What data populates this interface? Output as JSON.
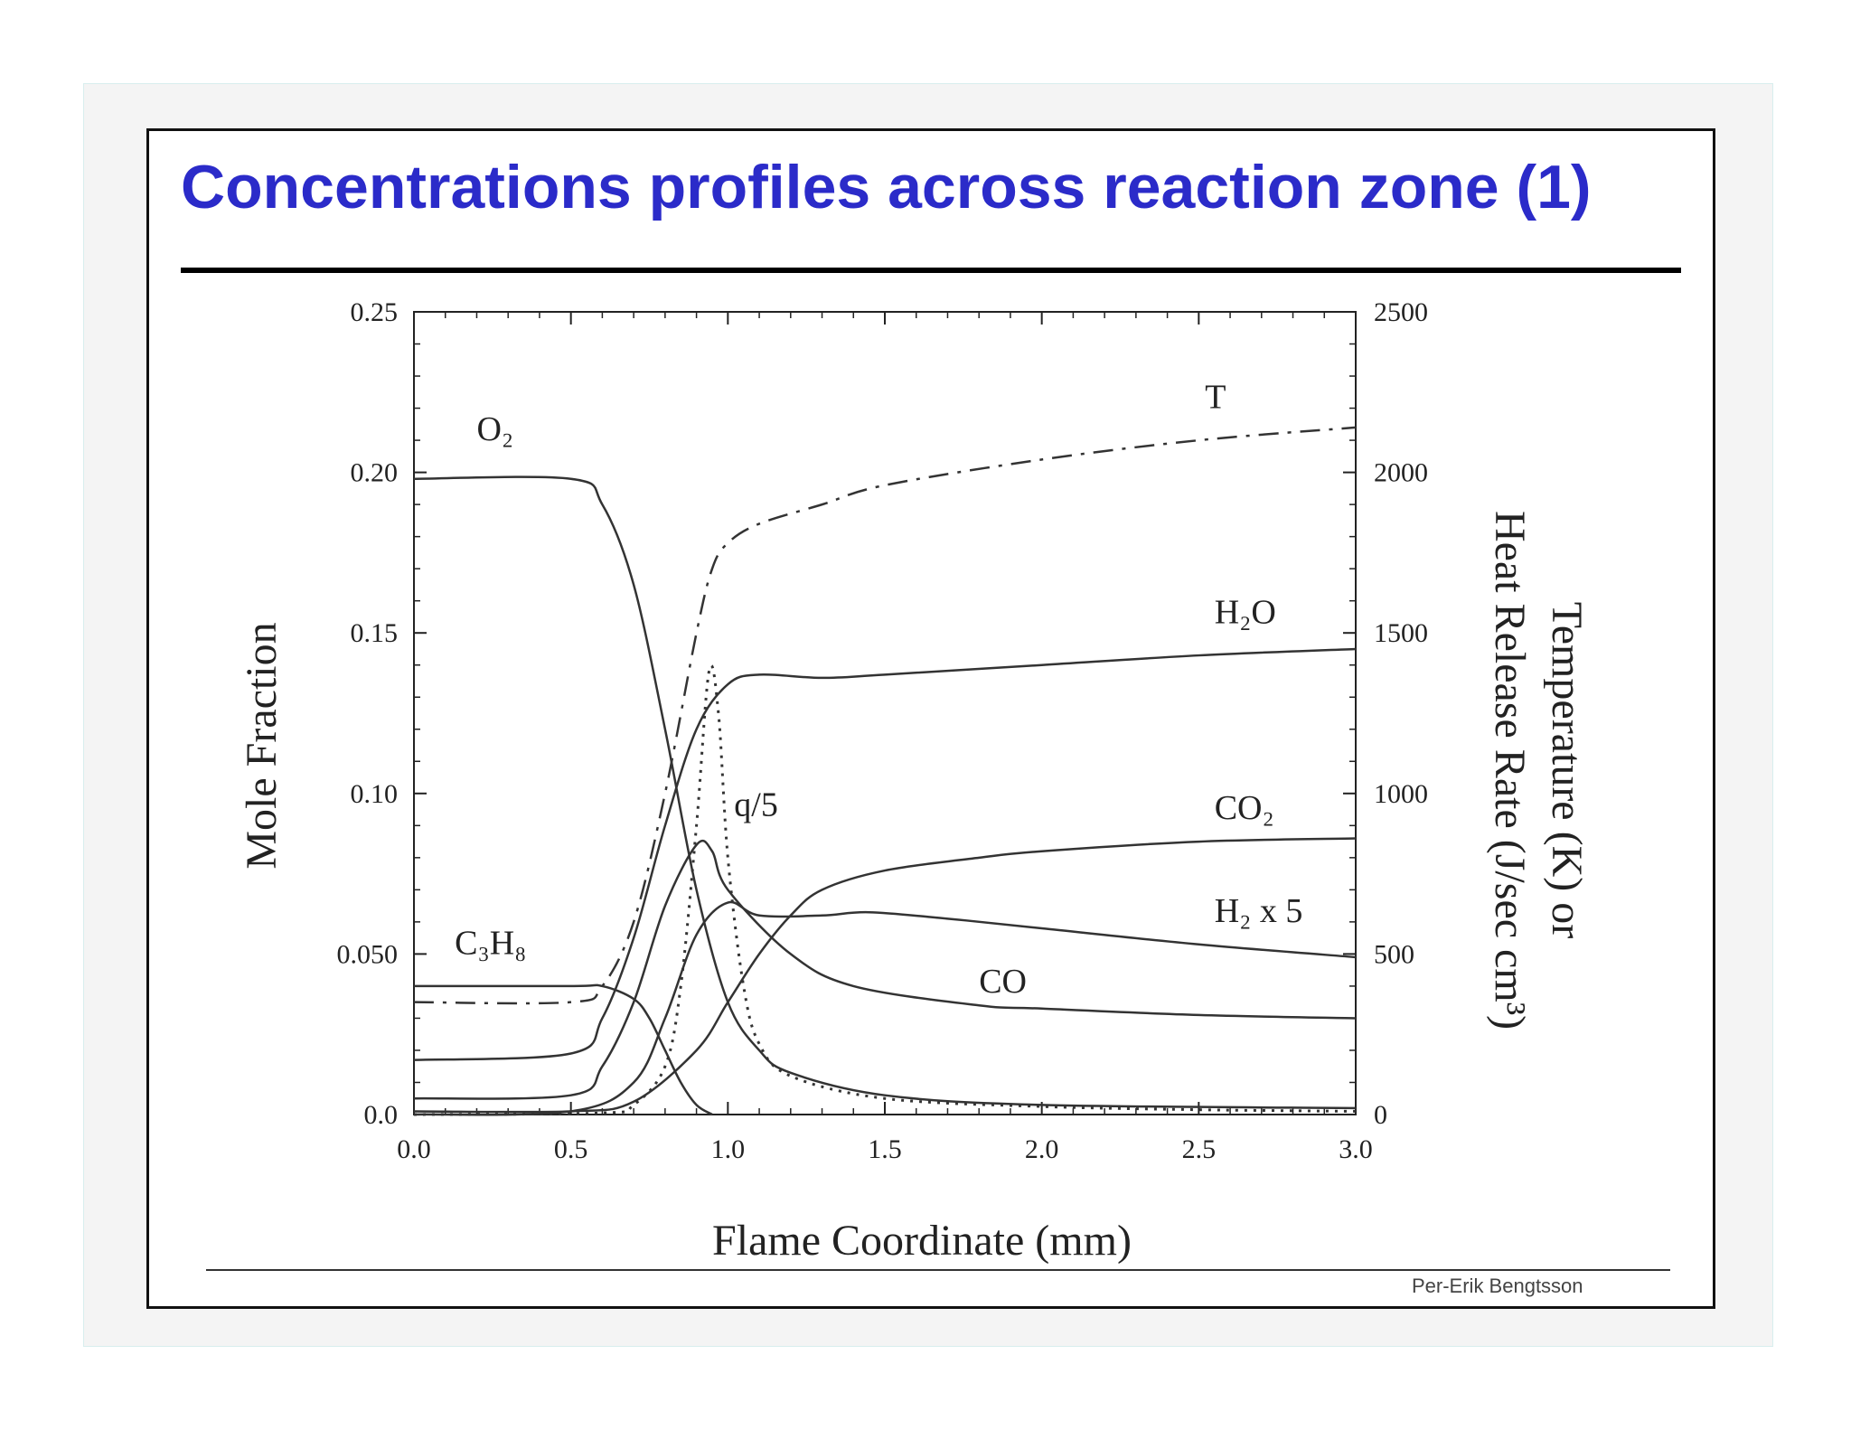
{
  "slide": {
    "title": "Concentrations profiles across reaction zone (1)",
    "credit": "Per-Erik Bengtsson"
  },
  "chart_data": {
    "type": "line",
    "title": "",
    "xlabel": "Flame Coordinate (mm)",
    "ylabel": "Mole Fraction",
    "y2label_line1": "Temperature (K) or",
    "y2label_line2": "Heat Release Rate (J/sec cm³)",
    "xlim": [
      0,
      3.0
    ],
    "ylim": [
      0,
      0.25
    ],
    "y2lim": [
      0,
      2500
    ],
    "x_ticks": [
      "0.0",
      "0.5",
      "1.0",
      "1.5",
      "2.0",
      "2.5",
      "3.0"
    ],
    "y_ticks": [
      "0.0",
      "0.050",
      "0.10",
      "0.15",
      "0.20",
      "0.25"
    ],
    "y2_ticks": [
      "0",
      "500",
      "1000",
      "1500",
      "2000",
      "2500"
    ],
    "grid": false,
    "colors": {
      "line": "#333333",
      "title": "#2b2bc9"
    },
    "series": [
      {
        "name": "O₂",
        "axis": "left",
        "style": "solid",
        "points": [
          [
            0,
            0.198
          ],
          [
            0.5,
            0.198
          ],
          [
            0.6,
            0.19
          ],
          [
            0.7,
            0.165
          ],
          [
            0.8,
            0.12
          ],
          [
            0.9,
            0.07
          ],
          [
            1.0,
            0.035
          ],
          [
            1.1,
            0.02
          ],
          [
            1.2,
            0.013
          ],
          [
            1.5,
            0.006
          ],
          [
            2.0,
            0.003
          ],
          [
            3.0,
            0.002
          ]
        ],
        "label_at": [
          0.2,
          0.21
        ]
      },
      {
        "name": "H₂O",
        "axis": "left",
        "style": "solid",
        "points": [
          [
            0,
            0.017
          ],
          [
            0.5,
            0.019
          ],
          [
            0.6,
            0.03
          ],
          [
            0.7,
            0.055
          ],
          [
            0.8,
            0.09
          ],
          [
            0.9,
            0.12
          ],
          [
            1.0,
            0.134
          ],
          [
            1.1,
            0.137
          ],
          [
            1.3,
            0.136
          ],
          [
            1.5,
            0.137
          ],
          [
            2.0,
            0.14
          ],
          [
            2.5,
            0.143
          ],
          [
            3.0,
            0.145
          ]
        ],
        "label_at": [
          2.55,
          0.153
        ]
      },
      {
        "name": "CO₂",
        "axis": "left",
        "style": "solid",
        "points": [
          [
            0,
            0.001
          ],
          [
            0.5,
            0.001
          ],
          [
            0.7,
            0.004
          ],
          [
            0.9,
            0.02
          ],
          [
            1.0,
            0.035
          ],
          [
            1.1,
            0.05
          ],
          [
            1.2,
            0.062
          ],
          [
            1.3,
            0.07
          ],
          [
            1.5,
            0.076
          ],
          [
            1.8,
            0.08
          ],
          [
            2.0,
            0.082
          ],
          [
            2.5,
            0.085
          ],
          [
            3.0,
            0.086
          ]
        ],
        "label_at": [
          2.55,
          0.092
        ]
      },
      {
        "name": "H₂ x 5",
        "axis": "left",
        "style": "solid",
        "points": [
          [
            0,
            0.0
          ],
          [
            0.5,
            0.001
          ],
          [
            0.7,
            0.01
          ],
          [
            0.8,
            0.03
          ],
          [
            0.9,
            0.056
          ],
          [
            1.0,
            0.066
          ],
          [
            1.1,
            0.062
          ],
          [
            1.3,
            0.062
          ],
          [
            1.45,
            0.063
          ],
          [
            1.7,
            0.061
          ],
          [
            2.0,
            0.058
          ],
          [
            2.5,
            0.053
          ],
          [
            3.0,
            0.049
          ]
        ],
        "label_at": [
          2.55,
          0.06
        ]
      },
      {
        "name": "CO",
        "axis": "left",
        "style": "solid",
        "points": [
          [
            0,
            0.005
          ],
          [
            0.5,
            0.006
          ],
          [
            0.6,
            0.015
          ],
          [
            0.7,
            0.035
          ],
          [
            0.8,
            0.065
          ],
          [
            0.9,
            0.084
          ],
          [
            0.95,
            0.082
          ],
          [
            1.0,
            0.07
          ],
          [
            1.2,
            0.05
          ],
          [
            1.4,
            0.04
          ],
          [
            1.8,
            0.034
          ],
          [
            2.0,
            0.033
          ],
          [
            2.5,
            0.031
          ],
          [
            3.0,
            0.03
          ]
        ],
        "label_at": [
          1.8,
          0.038
        ]
      },
      {
        "name": "C₃H₈",
        "axis": "left",
        "style": "solid",
        "points": [
          [
            0,
            0.04
          ],
          [
            0.5,
            0.04
          ],
          [
            0.6,
            0.04
          ],
          [
            0.7,
            0.036
          ],
          [
            0.75,
            0.03
          ],
          [
            0.8,
            0.02
          ],
          [
            0.85,
            0.01
          ],
          [
            0.9,
            0.003
          ],
          [
            0.95,
            0.0
          ]
        ],
        "label_at": [
          0.13,
          0.05
        ]
      },
      {
        "name": "T",
        "axis": "right",
        "style": "dashdot",
        "points": [
          [
            0,
            350
          ],
          [
            0.5,
            350
          ],
          [
            0.6,
            400
          ],
          [
            0.7,
            600
          ],
          [
            0.8,
            1000
          ],
          [
            0.9,
            1500
          ],
          [
            0.95,
            1700
          ],
          [
            1.0,
            1780
          ],
          [
            1.1,
            1840
          ],
          [
            1.3,
            1900
          ],
          [
            1.5,
            1960
          ],
          [
            2.0,
            2040
          ],
          [
            2.5,
            2100
          ],
          [
            3.0,
            2140
          ]
        ],
        "label_at": [
          2.52,
          2200
        ]
      },
      {
        "name": "q/5",
        "axis": "right",
        "style": "dotted",
        "points": [
          [
            0,
            0
          ],
          [
            0.6,
            5
          ],
          [
            0.7,
            30
          ],
          [
            0.8,
            150
          ],
          [
            0.85,
            400
          ],
          [
            0.9,
            900
          ],
          [
            0.94,
            1380
          ],
          [
            0.97,
            1250
          ],
          [
            1.0,
            800
          ],
          [
            1.05,
            400
          ],
          [
            1.1,
            220
          ],
          [
            1.2,
            120
          ],
          [
            1.5,
            50
          ],
          [
            2.0,
            25
          ],
          [
            2.5,
            15
          ],
          [
            3.0,
            10
          ]
        ],
        "label_at": [
          1.02,
          930
        ]
      }
    ]
  }
}
